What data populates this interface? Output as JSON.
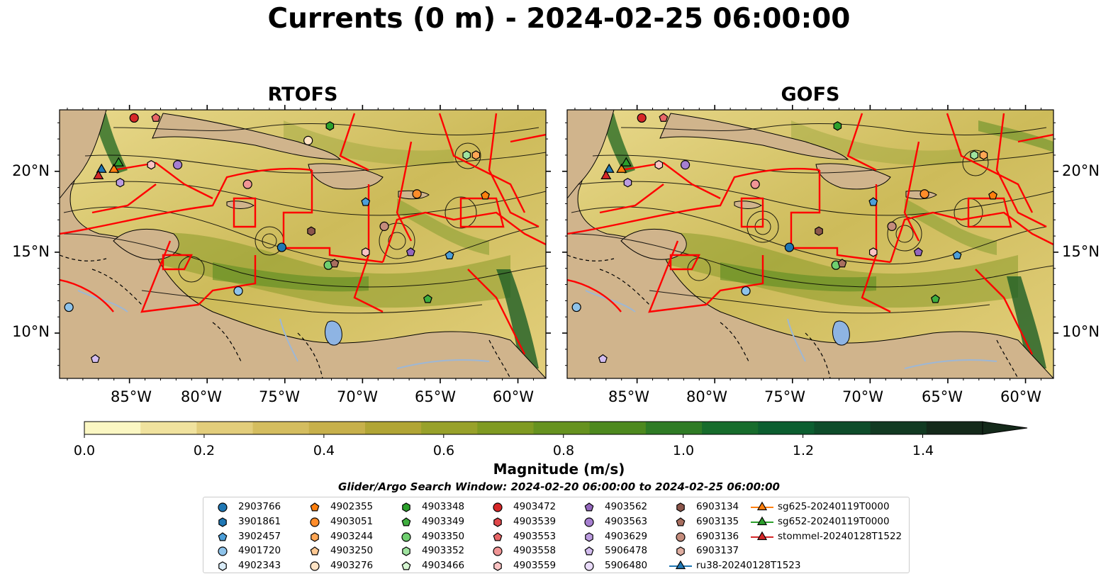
{
  "figure": {
    "title": "Currents (0 m) - 2024-02-25 06:00:00",
    "panels": [
      {
        "id": "rtofs",
        "title": "RTOFS"
      },
      {
        "id": "gofs",
        "title": "GOFS"
      }
    ],
    "lon_ticks": [
      "85°W",
      "80°W",
      "75°W",
      "70°W",
      "65°W",
      "60°W"
    ],
    "lat_ticks": [
      "20°N",
      "15°N",
      "10°N"
    ],
    "extent": {
      "lon": [
        -89.5,
        -58.2
      ],
      "lat": [
        7.2,
        23.8
      ]
    }
  },
  "colorbar": {
    "label": "Magnitude (m/s)",
    "ticks": [
      "0.0",
      "0.2",
      "0.4",
      "0.6",
      "0.8",
      "1.0",
      "1.2",
      "1.4"
    ],
    "range": [
      0,
      1.5
    ],
    "extend": "max",
    "colors": [
      "#fbf7c3",
      "#f0e29e",
      "#e2cd7b",
      "#d4bd5f",
      "#c7b04b",
      "#b1a535",
      "#98a12a",
      "#7f9a22",
      "#66921f",
      "#4d891e",
      "#2f7b25",
      "#176c2c",
      "#0c5e30",
      "#0e4c2a",
      "#123a22",
      "#14291a"
    ]
  },
  "search_window": "Glider/Argo Search Window: 2024-02-20 06:00:00 to 2024-02-25 06:00:00",
  "legend": [
    {
      "label": "2903766",
      "marker": "circle",
      "color": "#1f77b4"
    },
    {
      "label": "3901861",
      "marker": "hexagon",
      "color": "#1f77b4"
    },
    {
      "label": "3902457",
      "marker": "pentagon",
      "color": "#4c9fd9"
    },
    {
      "label": "4901720",
      "marker": "circle",
      "color": "#8ec3ea"
    },
    {
      "label": "4902343",
      "marker": "hexagon",
      "color": "#d9ecf8"
    },
    {
      "label": "4902355",
      "marker": "pentagon",
      "color": "#ff7f0e"
    },
    {
      "label": "4903051",
      "marker": "circle",
      "color": "#ff8c2a"
    },
    {
      "label": "4903244",
      "marker": "hexagon",
      "color": "#ffa654"
    },
    {
      "label": "4903250",
      "marker": "pentagon",
      "color": "#ffc993"
    },
    {
      "label": "4903276",
      "marker": "circle",
      "color": "#ffe3c4"
    },
    {
      "label": "4903348",
      "marker": "hexagon",
      "color": "#2ca02c"
    },
    {
      "label": "4903349",
      "marker": "pentagon",
      "color": "#3fae3f"
    },
    {
      "label": "4903350",
      "marker": "circle",
      "color": "#6fcf6f"
    },
    {
      "label": "4903352",
      "marker": "hexagon",
      "color": "#9fe39f"
    },
    {
      "label": "4903466",
      "marker": "pentagon",
      "color": "#d6f6d2"
    },
    {
      "label": "4903472",
      "marker": "circle",
      "color": "#d62728"
    },
    {
      "label": "4903539",
      "marker": "hexagon",
      "color": "#e0474a"
    },
    {
      "label": "4903553",
      "marker": "pentagon",
      "color": "#e86667"
    },
    {
      "label": "4903558",
      "marker": "circle",
      "color": "#f09595"
    },
    {
      "label": "4903559",
      "marker": "hexagon",
      "color": "#fac3c3"
    },
    {
      "label": "4903562",
      "marker": "pentagon",
      "color": "#9467bd"
    },
    {
      "label": "4903563",
      "marker": "circle",
      "color": "#a67fd0"
    },
    {
      "label": "4903629",
      "marker": "hexagon",
      "color": "#bb9be0"
    },
    {
      "label": "5906478",
      "marker": "pentagon",
      "color": "#d3bdef"
    },
    {
      "label": "5906480",
      "marker": "circle",
      "color": "#eadcfb"
    },
    {
      "label": "6903134",
      "marker": "hexagon",
      "color": "#8c564b"
    },
    {
      "label": "6903135",
      "marker": "pentagon",
      "color": "#a86e5f"
    },
    {
      "label": "6903136",
      "marker": "circle",
      "color": "#c48c7c"
    },
    {
      "label": "6903137",
      "marker": "hexagon",
      "color": "#dfaea1"
    },
    {
      "label": "ru38-20240128T1523",
      "marker": "triangle-line",
      "color": "#1f77b4"
    },
    {
      "label": "sg625-20240119T0000",
      "marker": "triangle-line",
      "color": "#ff7f0e"
    },
    {
      "label": "sg652-20240119T0000",
      "marker": "triangle-line",
      "color": "#2ca02c"
    },
    {
      "label": "stommel-20240128T1522",
      "marker": "triangle-line",
      "color": "#d62728"
    }
  ],
  "floats_rtofs": [
    {
      "lon": -75.2,
      "lat": 15.3,
      "legend": 0
    },
    {
      "lon": -64.4,
      "lat": 14.8,
      "legend": 2
    },
    {
      "lon": -78.0,
      "lat": 12.6,
      "legend": 3
    },
    {
      "lon": -88.9,
      "lat": 11.6,
      "legend": 3
    },
    {
      "lon": -69.8,
      "lat": 18.1,
      "legend": 2
    },
    {
      "lon": -66.5,
      "lat": 18.6,
      "legend": 6
    },
    {
      "lon": -62.1,
      "lat": 18.5,
      "legend": 5
    },
    {
      "lon": -62.7,
      "lat": 21.0,
      "legend": 7
    },
    {
      "lon": -73.5,
      "lat": 21.9,
      "legend": 9
    },
    {
      "lon": -72.1,
      "lat": 22.8,
      "legend": 10
    },
    {
      "lon": -63.3,
      "lat": 21.0,
      "legend": 13
    },
    {
      "lon": -72.2,
      "lat": 14.2,
      "legend": 12
    },
    {
      "lon": -65.8,
      "lat": 12.1,
      "legend": 11
    },
    {
      "lon": -84.7,
      "lat": 23.3,
      "legend": 15
    },
    {
      "lon": -83.3,
      "lat": 23.3,
      "legend": 17
    },
    {
      "lon": -77.4,
      "lat": 19.2,
      "legend": 18
    },
    {
      "lon": -83.6,
      "lat": 20.4,
      "legend": 19
    },
    {
      "lon": -69.8,
      "lat": 15.0,
      "legend": 19
    },
    {
      "lon": -66.9,
      "lat": 15.0,
      "legend": 20
    },
    {
      "lon": -81.9,
      "lat": 20.4,
      "legend": 21
    },
    {
      "lon": -85.6,
      "lat": 19.3,
      "legend": 22
    },
    {
      "lon": -87.2,
      "lat": 8.4,
      "legend": 23
    },
    {
      "lon": -73.3,
      "lat": 16.3,
      "legend": 25
    },
    {
      "lon": -71.8,
      "lat": 14.3,
      "legend": 26
    },
    {
      "lon": -68.6,
      "lat": 16.6,
      "legend": 27
    }
  ],
  "floats_gofs": [
    {
      "lon": -75.2,
      "lat": 15.3,
      "legend": 0
    },
    {
      "lon": -64.4,
      "lat": 14.8,
      "legend": 2
    },
    {
      "lon": -78.0,
      "lat": 12.6,
      "legend": 3
    },
    {
      "lon": -88.9,
      "lat": 11.6,
      "legend": 3
    },
    {
      "lon": -69.8,
      "lat": 18.1,
      "legend": 2
    },
    {
      "lon": -66.5,
      "lat": 18.6,
      "legend": 6
    },
    {
      "lon": -62.1,
      "lat": 18.5,
      "legend": 5
    },
    {
      "lon": -62.7,
      "lat": 21.0,
      "legend": 7
    },
    {
      "lon": -72.1,
      "lat": 22.8,
      "legend": 10
    },
    {
      "lon": -63.3,
      "lat": 21.0,
      "legend": 13
    },
    {
      "lon": -72.2,
      "lat": 14.2,
      "legend": 12
    },
    {
      "lon": -65.8,
      "lat": 12.1,
      "legend": 11
    },
    {
      "lon": -84.7,
      "lat": 23.3,
      "legend": 15
    },
    {
      "lon": -83.3,
      "lat": 23.3,
      "legend": 17
    },
    {
      "lon": -77.4,
      "lat": 19.2,
      "legend": 18
    },
    {
      "lon": -83.6,
      "lat": 20.4,
      "legend": 19
    },
    {
      "lon": -69.8,
      "lat": 15.0,
      "legend": 19
    },
    {
      "lon": -66.9,
      "lat": 15.0,
      "legend": 20
    },
    {
      "lon": -81.9,
      "lat": 20.4,
      "legend": 21
    },
    {
      "lon": -85.6,
      "lat": 19.3,
      "legend": 22
    },
    {
      "lon": -87.2,
      "lat": 8.4,
      "legend": 23
    },
    {
      "lon": -73.3,
      "lat": 16.3,
      "legend": 25
    },
    {
      "lon": -71.8,
      "lat": 14.3,
      "legend": 26
    },
    {
      "lon": -68.6,
      "lat": 16.6,
      "legend": 27
    }
  ],
  "gliders": [
    {
      "lon": -86.8,
      "lat": 20.1,
      "legend": 29
    },
    {
      "lon": -86.0,
      "lat": 20.1,
      "legend": 30
    },
    {
      "lon": -85.7,
      "lat": 20.5,
      "legend": 31
    },
    {
      "lon": -87.0,
      "lat": 19.7,
      "legend": 32
    }
  ]
}
